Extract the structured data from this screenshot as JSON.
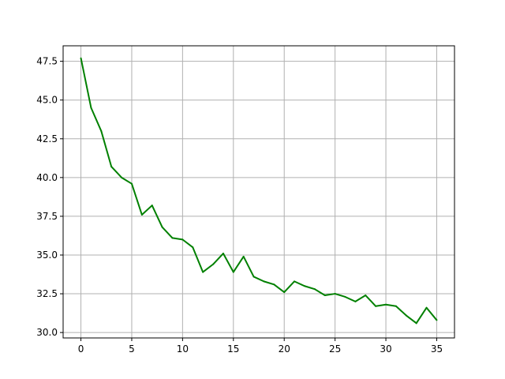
{
  "chart_data": {
    "type": "line",
    "title": "",
    "xlabel": "",
    "ylabel": "",
    "xlim": [
      -1.75,
      36.75
    ],
    "ylim": [
      29.65,
      48.5
    ],
    "xticks": [
      0,
      5,
      10,
      15,
      20,
      25,
      30,
      35
    ],
    "yticks": [
      30.0,
      32.5,
      35.0,
      37.5,
      40.0,
      42.5,
      45.0,
      47.5
    ],
    "ytick_labels": [
      "30.0",
      "32.5",
      "35.0",
      "37.5",
      "40.0",
      "42.5",
      "45.0",
      "47.5"
    ],
    "grid": true,
    "series": [
      {
        "color": "#008000",
        "x": [
          0,
          1,
          2,
          3,
          4,
          5,
          6,
          7,
          8,
          9,
          10,
          11,
          12,
          13,
          14,
          15,
          16,
          17,
          18,
          19,
          20,
          21,
          22,
          23,
          24,
          25,
          26,
          27,
          28,
          29,
          30,
          31,
          32,
          33,
          34,
          35
        ],
        "y": [
          47.7,
          44.5,
          43.0,
          40.7,
          40.0,
          39.6,
          37.6,
          38.2,
          36.8,
          36.1,
          36.0,
          35.5,
          33.9,
          34.4,
          35.1,
          33.9,
          34.9,
          33.6,
          33.3,
          33.1,
          32.6,
          33.3,
          33.0,
          32.8,
          32.4,
          32.5,
          32.3,
          32.0,
          32.4,
          31.7,
          31.8,
          31.7,
          31.1,
          30.6,
          31.6,
          30.8
        ]
      }
    ]
  }
}
